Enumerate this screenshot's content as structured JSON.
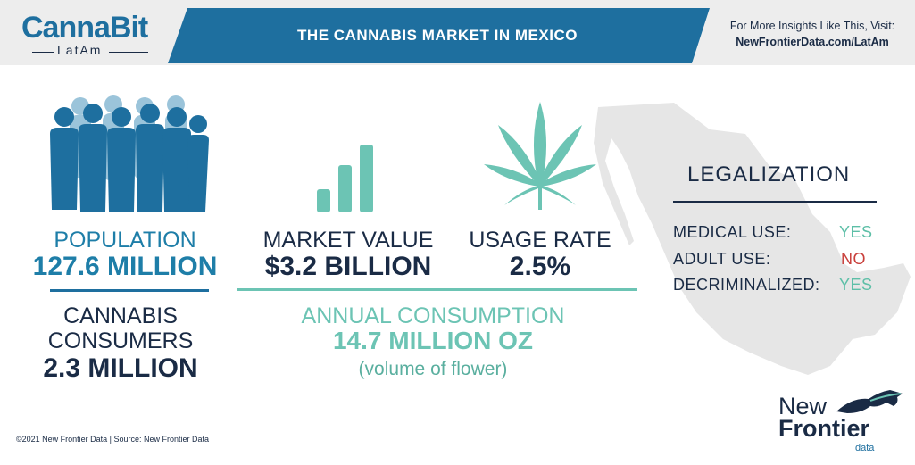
{
  "header": {
    "logo_brand": "CannaBit",
    "logo_sub": "LatAm",
    "title": "THE CANNABIS MARKET IN MEXICO",
    "visit_line1": "For More Insights Like This, Visit:",
    "visit_line2": "NewFrontierData.com/LatAm"
  },
  "stats": {
    "population_label": "POPULATION",
    "population_value": "127.6 MILLION",
    "consumers_label_1": "CANNABIS",
    "consumers_label_2": "CONSUMERS",
    "consumers_value": "2.3 MILLION",
    "market_label": "MARKET VALUE",
    "market_value": "$3.2 BILLION",
    "usage_label": "USAGE RATE",
    "usage_value": "2.5%",
    "consumption_label": "ANNUAL CONSUMPTION",
    "consumption_value": "14.7 MILLION OZ",
    "consumption_note": "(volume of flower)"
  },
  "legalization": {
    "title": "LEGALIZATION",
    "rows": [
      {
        "label": "MEDICAL USE:",
        "value": "YES"
      },
      {
        "label": "ADULT USE:",
        "value": "NO"
      },
      {
        "label": "DECRIMINALIZED:",
        "value": "YES"
      }
    ]
  },
  "footer": {
    "copyright": "©2021  New Frontier Data | Source: New Frontier Data",
    "logo_new": "New",
    "logo_frontier": "Frontier",
    "logo_data": "data"
  },
  "colors": {
    "navy": "#1a2b45",
    "blue": "#1e6f9f",
    "teal": "#6cc4b4",
    "red": "#c9403c"
  }
}
